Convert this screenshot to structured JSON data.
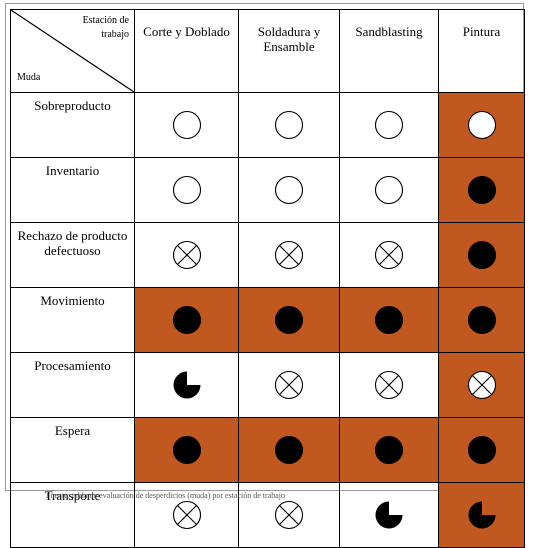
{
  "corner": {
    "top_label": "Estación de trabajo",
    "bottom_label": "Muda"
  },
  "columns": [
    "Corte y Doblado",
    "Soldadura y Ensamble",
    "Sandblasting",
    "Pintura"
  ],
  "colors": {
    "highlight": "#c0581f",
    "symbol": "#000000",
    "open_fill": "#ffffff"
  },
  "legend_symbols": {
    "empty": "empty-circle",
    "x": "crossed-circle",
    "full": "filled-circle",
    "quarter": "three-quarter-circle"
  },
  "rows": [
    {
      "label": "Sobreproducto",
      "cells": [
        {
          "symbol": "empty",
          "highlight": false
        },
        {
          "symbol": "empty",
          "highlight": false
        },
        {
          "symbol": "empty",
          "highlight": false
        },
        {
          "symbol": "empty",
          "highlight": true
        }
      ]
    },
    {
      "label": "Inventario",
      "cells": [
        {
          "symbol": "empty",
          "highlight": false
        },
        {
          "symbol": "empty",
          "highlight": false
        },
        {
          "symbol": "empty",
          "highlight": false
        },
        {
          "symbol": "full",
          "highlight": true
        }
      ]
    },
    {
      "label": "Rechazo de producto defectuoso",
      "cells": [
        {
          "symbol": "x",
          "highlight": false
        },
        {
          "symbol": "x",
          "highlight": false
        },
        {
          "symbol": "x",
          "highlight": false
        },
        {
          "symbol": "full",
          "highlight": true
        }
      ]
    },
    {
      "label": "Movimiento",
      "cells": [
        {
          "symbol": "full",
          "highlight": true
        },
        {
          "symbol": "full",
          "highlight": true
        },
        {
          "symbol": "full",
          "highlight": true
        },
        {
          "symbol": "full",
          "highlight": true
        }
      ]
    },
    {
      "label": "Procesamiento",
      "cells": [
        {
          "symbol": "quarter",
          "highlight": false
        },
        {
          "symbol": "x",
          "highlight": false
        },
        {
          "symbol": "x",
          "highlight": false
        },
        {
          "symbol": "x",
          "highlight": true
        }
      ]
    },
    {
      "label": "Espera",
      "cells": [
        {
          "symbol": "full",
          "highlight": true
        },
        {
          "symbol": "full",
          "highlight": true
        },
        {
          "symbol": "full",
          "highlight": true
        },
        {
          "symbol": "full",
          "highlight": true
        }
      ]
    },
    {
      "label": "Transporte",
      "cells": [
        {
          "symbol": "x",
          "highlight": false
        },
        {
          "symbol": "x",
          "highlight": false
        },
        {
          "symbol": "quarter",
          "highlight": false
        },
        {
          "symbol": "quarter",
          "highlight": true
        }
      ]
    }
  ],
  "footnote": "Fuente: tabla de evaluación de desperdicios (muda) por estación de trabajo"
}
